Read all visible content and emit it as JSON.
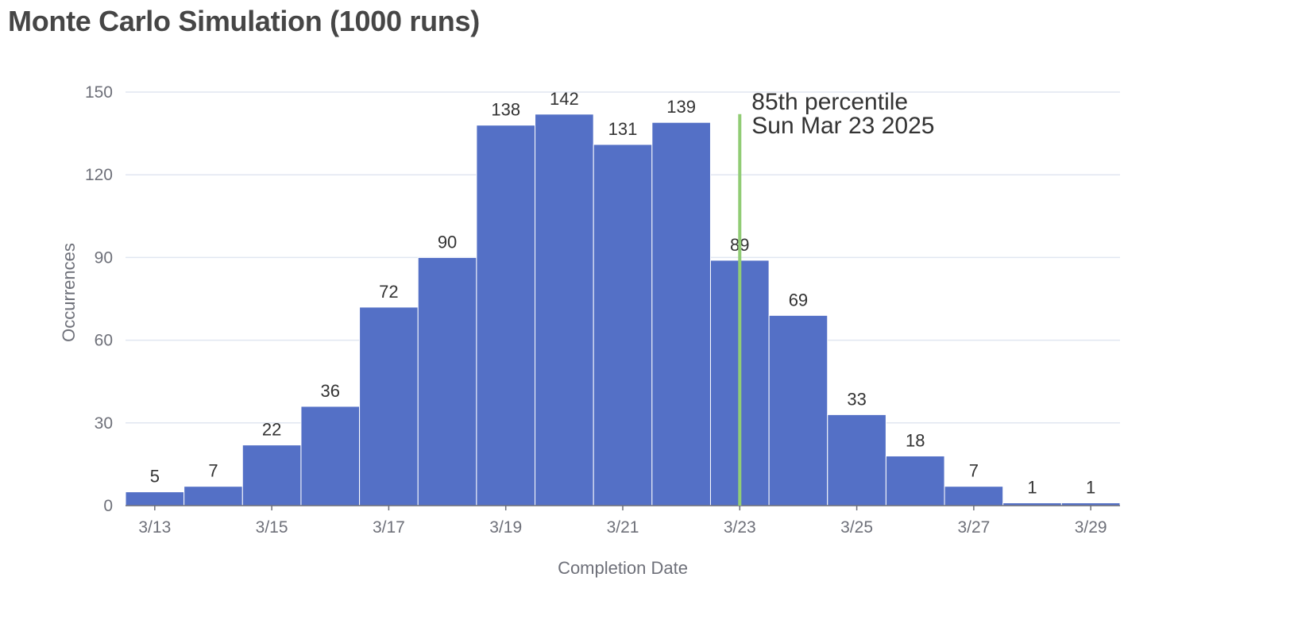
{
  "chart_title": "Monte Carlo Simulation (1000 runs)",
  "chart_data": {
    "type": "bar",
    "title": "Monte Carlo Simulation (1000 runs)",
    "xlabel": "Completion Date",
    "ylabel": "Occurrences",
    "categories": [
      "3/13",
      "3/14",
      "3/15",
      "3/16",
      "3/17",
      "3/18",
      "3/19",
      "3/20",
      "3/21",
      "3/22",
      "3/23",
      "3/24",
      "3/25",
      "3/26",
      "3/27",
      "3/28",
      "3/29"
    ],
    "values": [
      5,
      7,
      22,
      36,
      72,
      90,
      138,
      142,
      131,
      139,
      89,
      69,
      33,
      18,
      7,
      1,
      1
    ],
    "x_tick_labels": [
      "3/13",
      "3/15",
      "3/17",
      "3/19",
      "3/21",
      "3/23",
      "3/25",
      "3/27",
      "3/29"
    ],
    "y_ticks": [
      0,
      30,
      60,
      90,
      120,
      150
    ],
    "ylim": [
      0,
      150
    ],
    "grid": true,
    "legend": false,
    "bar_color": "#5470c6",
    "marker": {
      "category": "3/23",
      "label_line1": "85th percentile",
      "label_line2": "Sun Mar 23 2025",
      "color": "#91cc75"
    }
  }
}
